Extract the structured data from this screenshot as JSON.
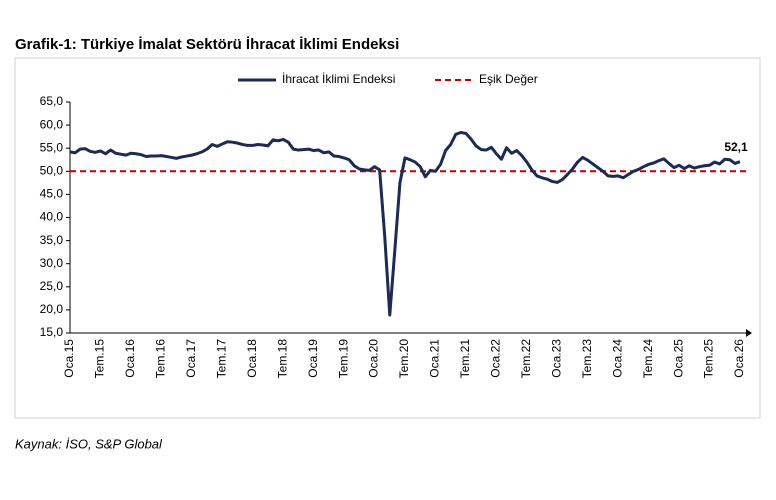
{
  "chart_data": {
    "type": "line",
    "title": "Grafik-1: Türkiye İmalat Sektörü İhracat İklimi Endeksi",
    "source": "Kaynak: İSO, S&P Global",
    "categories": [
      "Oca.15",
      null,
      null,
      null,
      null,
      null,
      "Tem.15",
      null,
      null,
      null,
      null,
      null,
      "Oca.16",
      null,
      null,
      null,
      null,
      null,
      "Tem.16",
      null,
      null,
      null,
      null,
      null,
      "Oca.17",
      null,
      null,
      null,
      null,
      null,
      "Tem.17",
      null,
      null,
      null,
      null,
      null,
      "Oca.18",
      null,
      null,
      null,
      null,
      null,
      "Tem.18",
      null,
      null,
      null,
      null,
      null,
      "Oca.19",
      null,
      null,
      null,
      null,
      null,
      "Tem.19",
      null,
      null,
      null,
      null,
      null,
      "Oca.20",
      null,
      null,
      null,
      null,
      null,
      "Tem.20",
      null,
      null,
      null,
      null,
      null,
      "Oca.21",
      null,
      null,
      null,
      null,
      null,
      "Tem.21",
      null,
      null,
      null,
      null,
      null,
      "Oca.22",
      null,
      null,
      null,
      null,
      null,
      "Tem.22",
      null,
      null,
      null,
      null,
      null,
      "Oca.23",
      null,
      null,
      null,
      null,
      null,
      "Tem.23",
      null,
      null,
      null,
      null,
      null,
      "Oca.24",
      null,
      null,
      null,
      null,
      null,
      "Tem.24",
      null,
      null,
      null,
      null,
      null,
      "Oca.25",
      null,
      null,
      null,
      null,
      null,
      "Tem.25",
      null,
      null,
      null,
      null,
      null,
      "Oca.26"
    ],
    "series": [
      {
        "name": "İhracat İklimi Endeksi",
        "color": "#1b2a57",
        "values": [
          54.2,
          54.0,
          54.8,
          54.9,
          54.3,
          54.1,
          54.4,
          53.8,
          54.6,
          53.9,
          53.7,
          53.5,
          53.9,
          53.8,
          53.6,
          53.2,
          53.3,
          53.3,
          53.4,
          53.2,
          53.0,
          52.8,
          53.1,
          53.3,
          53.5,
          53.8,
          54.2,
          54.8,
          55.8,
          55.4,
          55.9,
          56.4,
          56.3,
          56.1,
          55.8,
          55.6,
          55.6,
          55.8,
          55.7,
          55.5,
          56.8,
          56.6,
          56.9,
          56.3,
          54.8,
          54.6,
          54.7,
          54.8,
          54.5,
          54.6,
          54.0,
          54.2,
          53.3,
          53.2,
          52.9,
          52.5,
          51.2,
          50.5,
          50.3,
          50.2,
          51.0,
          50.3,
          36.0,
          18.9,
          33.0,
          47.5,
          52.9,
          52.5,
          52.0,
          51.0,
          48.8,
          50.2,
          50.0,
          51.5,
          54.5,
          55.8,
          58.0,
          58.4,
          58.2,
          57.0,
          55.5,
          54.7,
          54.6,
          55.2,
          53.8,
          52.6,
          55.1,
          53.9,
          54.5,
          53.4,
          52.0,
          50.3,
          49.0,
          48.6,
          48.3,
          47.8,
          47.6,
          48.2,
          49.3,
          50.5,
          52.0,
          53.0,
          52.4,
          51.6,
          50.8,
          50.0,
          49.0,
          48.9,
          49.0,
          48.6,
          49.3,
          50.0,
          50.4,
          51.0,
          51.5,
          51.8,
          52.3,
          52.7,
          51.7,
          50.8,
          51.3,
          50.6,
          51.2,
          50.7,
          51.0,
          51.2,
          51.3,
          52.0,
          51.6,
          52.6,
          52.5,
          51.7,
          52.1
        ],
        "value_labels": [
          null,
          null,
          null,
          null,
          null,
          null,
          null,
          null,
          null,
          null,
          null,
          null,
          null,
          null,
          null,
          null,
          null,
          null,
          null,
          null,
          null,
          null,
          null,
          null,
          null,
          null,
          null,
          null,
          null,
          null,
          null,
          null,
          null,
          null,
          null,
          null,
          null,
          null,
          null,
          null,
          null,
          null,
          null,
          null,
          null,
          null,
          null,
          null,
          null,
          null,
          null,
          null,
          null,
          null,
          null,
          null,
          null,
          null,
          null,
          null,
          null,
          null,
          null,
          null,
          null,
          null,
          null,
          null,
          null,
          null,
          null,
          null,
          null,
          null,
          null,
          null,
          null,
          null,
          null,
          null,
          null,
          null,
          null,
          null,
          null,
          null,
          null,
          null,
          null,
          null,
          null,
          null,
          null,
          null,
          null,
          null,
          null,
          null,
          null,
          null,
          null,
          null,
          null,
          null,
          null,
          null,
          null,
          null,
          null,
          null,
          null,
          null,
          null,
          null,
          null,
          null,
          null,
          null,
          null,
          null,
          null,
          null,
          null,
          null,
          null,
          null,
          null,
          null,
          null,
          null,
          null,
          null,
          "52,1"
        ]
      }
    ],
    "threshold": {
      "name": "Eşik Değer",
      "value": 50,
      "color": "#c00000"
    },
    "ylim": [
      15,
      65
    ],
    "yticks": [
      {
        "value": 15,
        "label": "15,0"
      },
      {
        "value": 20,
        "label": "20,0"
      },
      {
        "value": 25,
        "label": "25,0"
      },
      {
        "value": 30,
        "label": "30,0"
      },
      {
        "value": 35,
        "label": "35,0"
      },
      {
        "value": 40,
        "label": "40,0"
      },
      {
        "value": 45,
        "label": "45,0"
      },
      {
        "value": 50,
        "label": "50,0"
      },
      {
        "value": 55,
        "label": "55,0"
      },
      {
        "value": 60,
        "label": "60,0"
      },
      {
        "value": 65,
        "label": "65,0"
      }
    ]
  }
}
